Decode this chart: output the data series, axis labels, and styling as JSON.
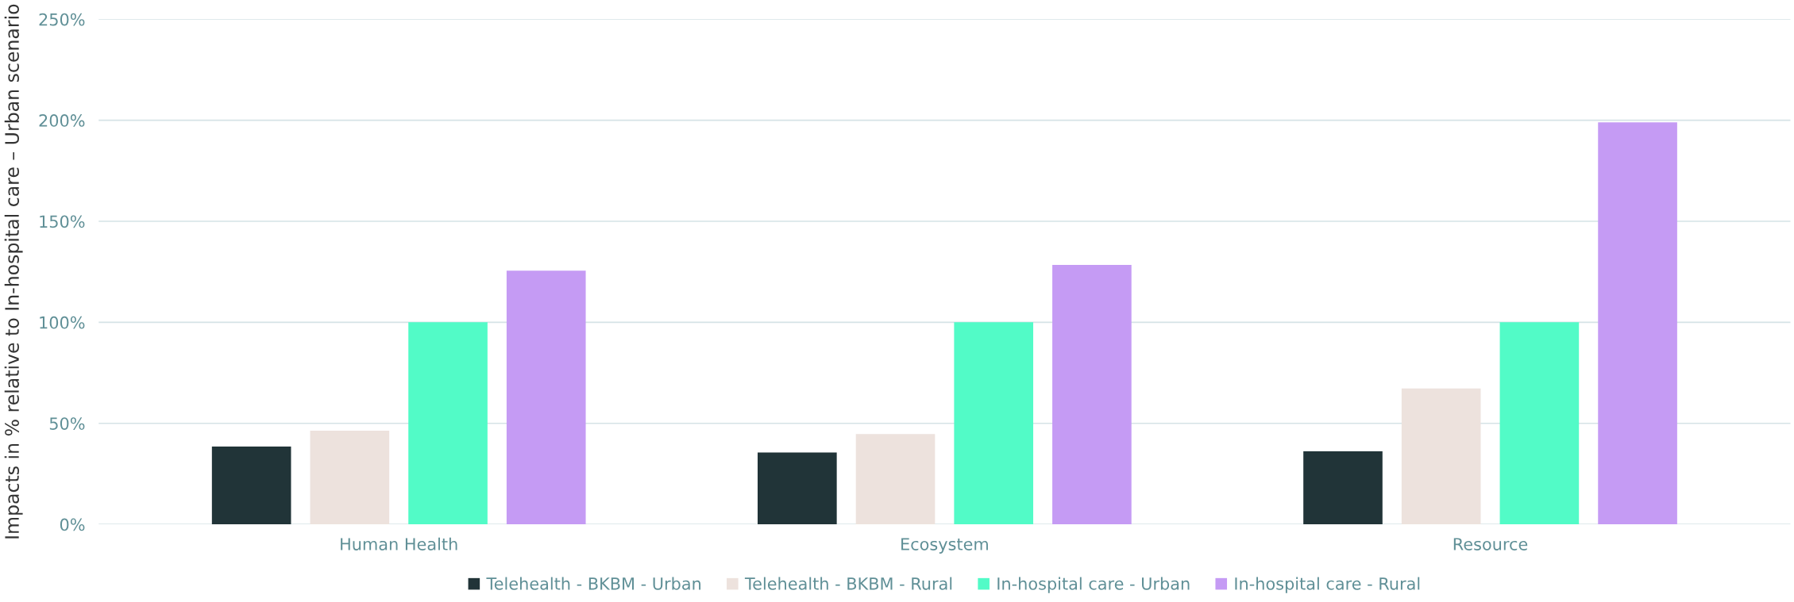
{
  "chart_data": {
    "type": "bar",
    "ylabel": "Impacts in % relative to In-hospital care – Urban scenario",
    "categories": [
      "Human Health",
      "Ecosystem",
      "Resource"
    ],
    "series": [
      {
        "name": "Telehealth - BKBM - Urban",
        "color": "#213438",
        "values": [
          38.5,
          35.6,
          36.2
        ]
      },
      {
        "name": "Telehealth - BKBM - Rural",
        "color": "#ede2dd",
        "values": [
          46.4,
          44.7,
          67.3
        ]
      },
      {
        "name": "In-hospital care - Urban",
        "color": "#52fbc7",
        "values": [
          100,
          100,
          100
        ]
      },
      {
        "name": "In-hospital care - Rural",
        "color": "#c59bf4",
        "values": [
          125.6,
          128.4,
          199
        ]
      }
    ],
    "ylim": [
      0,
      250
    ],
    "yticks": [
      {
        "value": 0,
        "label": "0%"
      },
      {
        "value": 50,
        "label": "50%"
      },
      {
        "value": 100,
        "label": "100%"
      },
      {
        "value": 150,
        "label": "150%"
      },
      {
        "value": 200,
        "label": "200%"
      },
      {
        "value": 250,
        "label": "250%"
      }
    ],
    "grid": "y",
    "legend": "bottom"
  }
}
